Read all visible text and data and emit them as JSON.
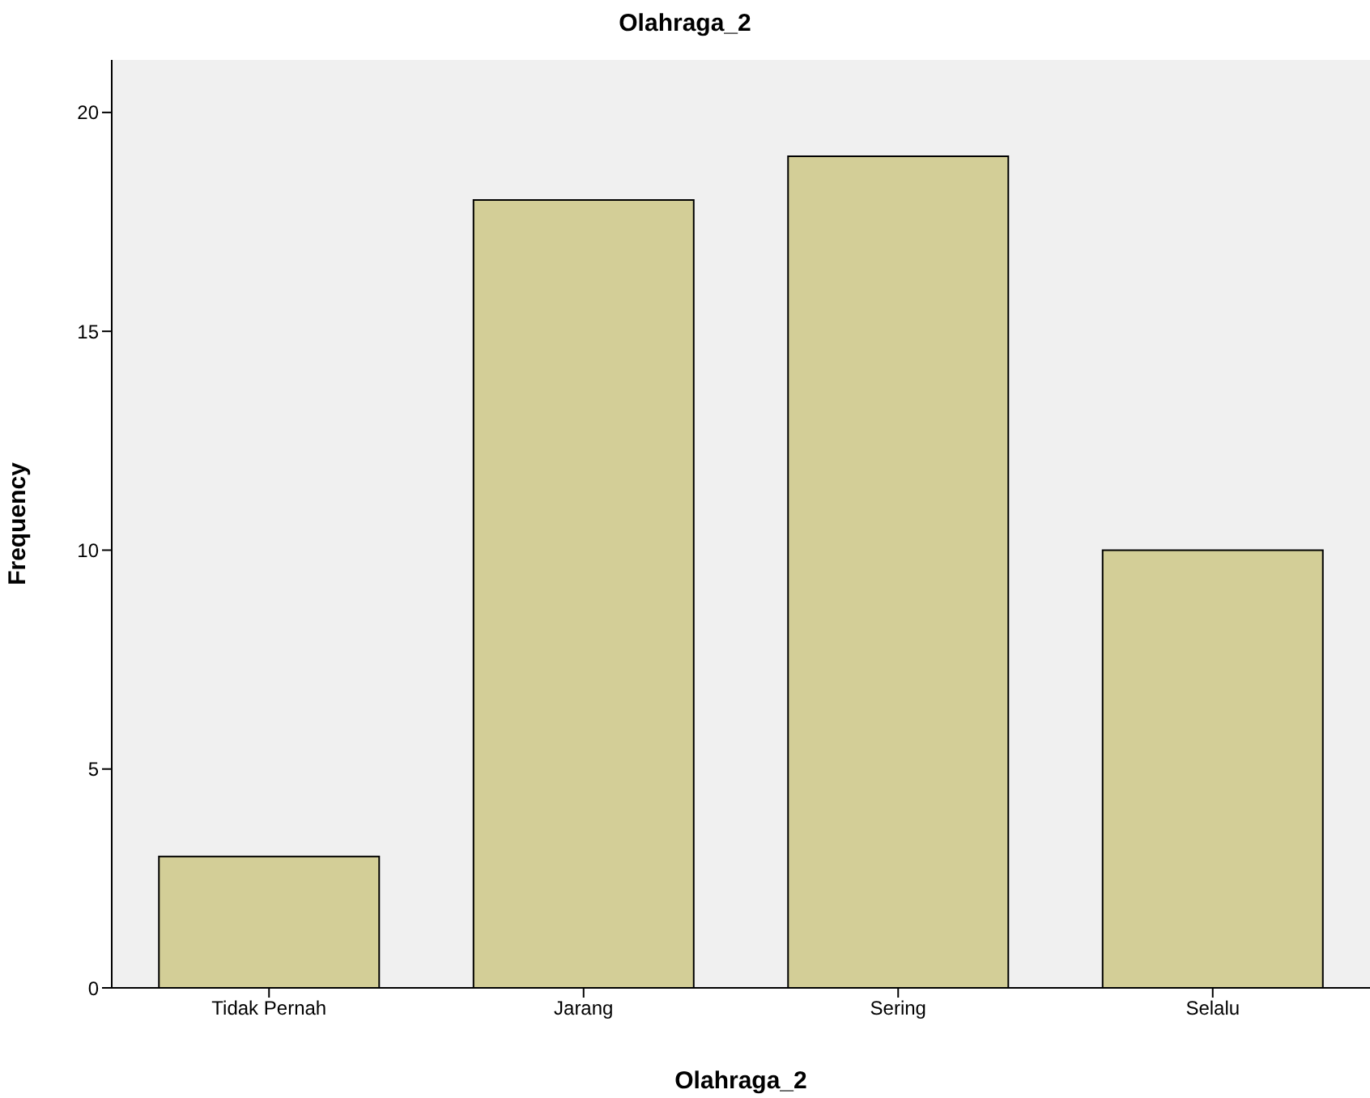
{
  "chart_data": {
    "type": "bar",
    "title": "Olahraga_2",
    "xlabel": "Olahraga_2",
    "ylabel": "Frequency",
    "categories": [
      "Tidak Pernah",
      "Jarang",
      "Sering",
      "Selalu"
    ],
    "values": [
      3,
      18,
      19,
      10
    ],
    "color": "#d3ce97",
    "ylim": [
      0,
      21.2
    ],
    "yticks": [
      0,
      5,
      10,
      15,
      20
    ],
    "grid": false
  }
}
